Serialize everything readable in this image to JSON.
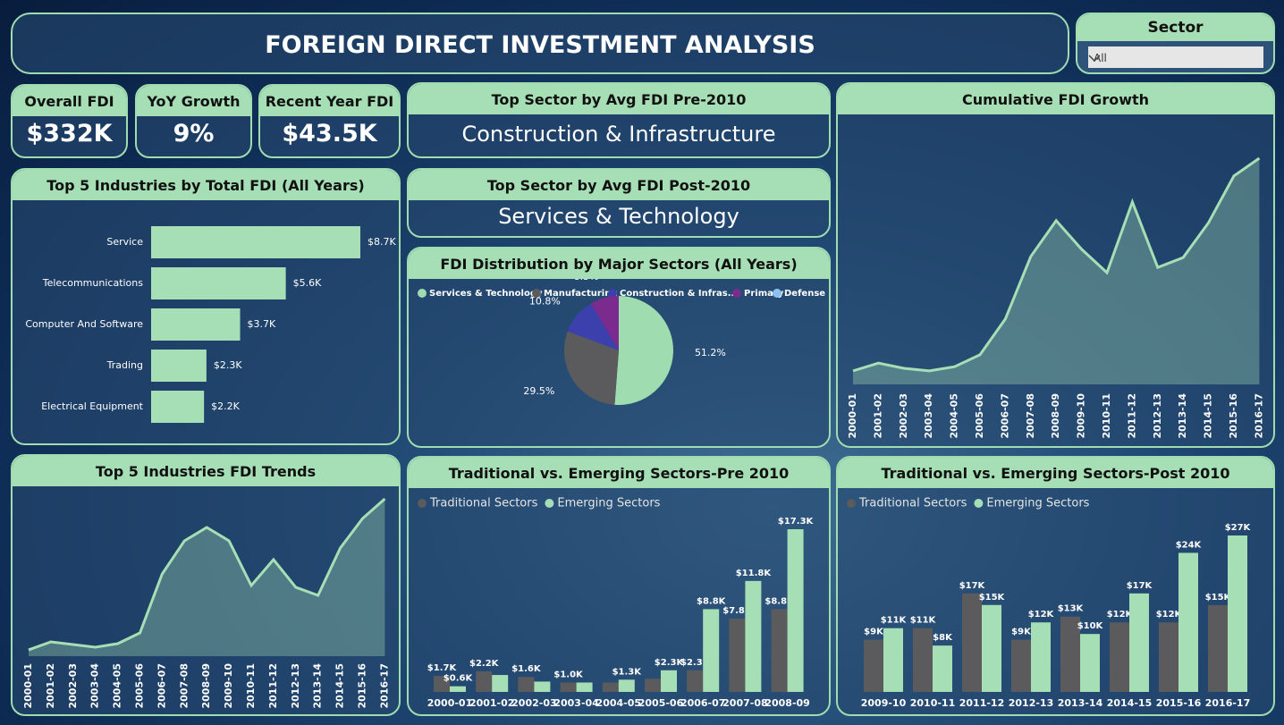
{
  "header": {
    "title": "FOREIGN DIRECT INVESTMENT ANALYSIS",
    "slicer": {
      "label": "Sector",
      "value": "All"
    }
  },
  "kpis": [
    {
      "label": "Overall FDI",
      "value": "$332K"
    },
    {
      "label": "YoY Growth",
      "value": "9%"
    },
    {
      "label": "Recent Year FDI",
      "value": "$43.5K"
    }
  ],
  "cards": [
    {
      "title": "Top Sector by Avg FDI Pre-2010",
      "value": "Construction & Infrastructure"
    },
    {
      "title": "Top Sector by Avg FDI Post-2010",
      "value": "Services & Technology"
    }
  ],
  "chart_data": [
    {
      "type": "bar",
      "orientation": "horizontal",
      "title": "Top 5 Industries by Total FDI (All Years)",
      "categories": [
        "Service",
        "Telecommunications",
        "Computer And Software",
        "Trading",
        "Electrical Equipment"
      ],
      "values": [
        8700,
        5600,
        3700,
        2300,
        2200
      ],
      "value_labels": [
        "$8.7K",
        "$5.6K",
        "$3.7K",
        "$2.3K",
        "$2.2K"
      ],
      "color": "#a6dfb5"
    },
    {
      "type": "pie",
      "title": "FDI Distribution by Major Sectors (All Years)",
      "categories": [
        "Services & Technology",
        "Manufacturing",
        "Construction & Infras...",
        "Primary",
        "Defense"
      ],
      "values": [
        51.2,
        29.5,
        10.8,
        8.5,
        0
      ],
      "value_labels": [
        "51.2%",
        "29.5%",
        "10.8%",
        "8.5%",
        null
      ],
      "colors": [
        "#9fdcb0",
        "#5b5b5e",
        "#3c40ad",
        "#7b2a8e",
        "#8fc1f0"
      ]
    },
    {
      "type": "area",
      "title": "Cumulative FDI Growth",
      "categories": [
        "2000-01",
        "2001-02",
        "2002-03",
        "2003-04",
        "2004-05",
        "2005-06",
        "2006-07",
        "2007-08",
        "2008-09",
        "2009-10",
        "2010-11",
        "2011-12",
        "2012-13",
        "2013-14",
        "2014-15",
        "2015-16",
        "2016-17"
      ],
      "values": [
        2600,
        4100,
        3100,
        2600,
        3400,
        5700,
        12600,
        24600,
        31500,
        26000,
        21500,
        35100,
        22500,
        24400,
        31100,
        40100,
        43500
      ],
      "color": "#a6dfb5"
    },
    {
      "type": "area",
      "title": "Top 5 Industries FDI Trends",
      "categories": [
        "2000-01",
        "2001-02",
        "2002-03",
        "2003-04",
        "2004-05",
        "2005-06",
        "2006-07",
        "2007-08",
        "2008-09",
        "2009-10",
        "2010-11",
        "2011-12",
        "2012-13",
        "2013-14",
        "2014-15",
        "2015-16",
        "2016-17"
      ],
      "values": [
        116,
        264,
        215,
        165,
        231,
        429,
        1518,
        2129,
        2376,
        2129,
        1304,
        1782,
        1271,
        1122,
        1997,
        2541,
        2904
      ],
      "color": "#a6dfb5"
    },
    {
      "type": "bar",
      "orientation": "vertical",
      "title": "Traditional vs. Emerging Sectors-Pre 2010",
      "categories": [
        "2000-01",
        "2001-02",
        "2002-03",
        "2003-04",
        "2004-05",
        "2005-06",
        "2006-07",
        "2007-08",
        "2008-09"
      ],
      "series": [
        {
          "name": "Traditional Sectors",
          "color": "#5b5b5e",
          "values": [
            1700,
            2200,
            1600,
            1000,
            1000,
            1400,
            2300,
            7800,
            8800
          ],
          "value_labels": [
            "$1.7K",
            "$2.2K",
            "$1.6K",
            "$1.0K",
            null,
            null,
            "$2.3K",
            "$7.8K",
            "$8.8K"
          ]
        },
        {
          "name": "Emerging Sectors",
          "color": "#a6dfb5",
          "values": [
            600,
            1800,
            1100,
            1000,
            1300,
            2300,
            8800,
            11800,
            17300
          ],
          "value_labels": [
            "$0.6K",
            null,
            null,
            null,
            "$1.3K",
            "$2.3K",
            "$8.8K",
            "$11.8K",
            "$17.3K"
          ]
        }
      ]
    },
    {
      "type": "bar",
      "orientation": "vertical",
      "title": "Traditional vs. Emerging Sectors-Post 2010",
      "categories": [
        "2009-10",
        "2010-11",
        "2011-12",
        "2012-13",
        "2013-14",
        "2014-15",
        "2015-16",
        "2016-17"
      ],
      "series": [
        {
          "name": "Traditional Sectors",
          "color": "#5b5b5e",
          "values": [
            9000,
            11000,
            17000,
            9000,
            13000,
            12000,
            12000,
            15000
          ],
          "value_labels": [
            "$9K",
            "$11K",
            "$17K",
            "$9K",
            "$13K",
            "$12K",
            "$12K",
            "$15K"
          ]
        },
        {
          "name": "Emerging Sectors",
          "color": "#a6dfb5",
          "values": [
            11000,
            8000,
            15000,
            12000,
            10000,
            17000,
            24000,
            27000
          ],
          "value_labels": [
            "$11K",
            "$8K",
            "$15K",
            "$12K",
            "$10K",
            "$17K",
            "$24K",
            "$27K"
          ]
        }
      ]
    }
  ]
}
